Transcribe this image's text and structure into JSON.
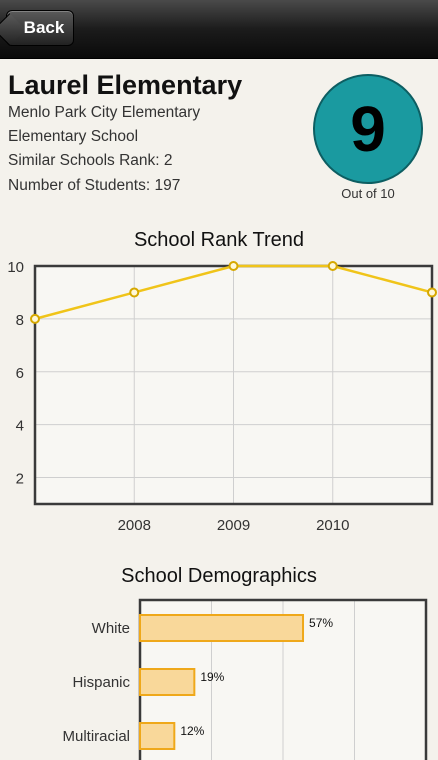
{
  "nav": {
    "back_label": "Back"
  },
  "school": {
    "name": "Laurel Elementary",
    "district": "Menlo Park City Elementary",
    "type": "Elementary School",
    "similar_rank": "Similar Schools Rank: 2",
    "students": "Number of Students: 197"
  },
  "rank": {
    "value": "9",
    "caption": "Out of 10",
    "color": "#1a9aa0"
  },
  "chart_data": [
    {
      "type": "line",
      "title": "School Rank Trend",
      "x": [
        "2007",
        "2008",
        "2009",
        "2010",
        "2011"
      ],
      "x_tick_labels": [
        "2008",
        "2009",
        "2010"
      ],
      "values": [
        8,
        9,
        10,
        10,
        9
      ],
      "ylim": [
        1,
        10
      ],
      "y_ticks": [
        2,
        4,
        6,
        8,
        10
      ],
      "grid": true,
      "line_color": "#f0c419"
    },
    {
      "type": "bar",
      "orientation": "horizontal",
      "title": "School Demographics",
      "categories": [
        "White",
        "Hispanic",
        "Multiracial"
      ],
      "values": [
        57,
        19,
        12
      ],
      "value_labels": [
        "57%",
        "19%",
        "12%"
      ],
      "xlim": [
        0,
        100
      ],
      "grid": true,
      "bar_color": "#f9d89a"
    }
  ]
}
